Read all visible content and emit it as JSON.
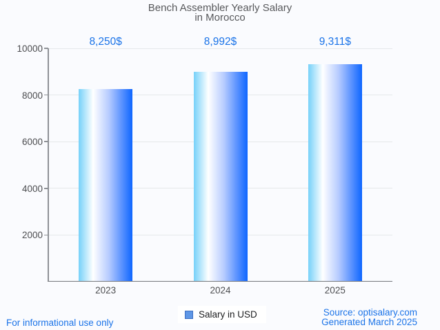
{
  "chart_data": {
    "type": "bar",
    "title_line1": "Bench Assembler Yearly Salary",
    "title_line2": "in Morocco",
    "categories": [
      "2023",
      "2024",
      "2025"
    ],
    "values": [
      8250,
      8992,
      9311
    ],
    "value_labels": [
      "8,250$",
      "8,992$",
      "9,311$"
    ],
    "series": [
      {
        "name": "Salary in USD",
        "values": [
          8250,
          8992,
          9311
        ]
      }
    ],
    "xlabel": "",
    "ylabel": "",
    "ylim": [
      0,
      10000
    ],
    "yticks": [
      2000,
      4000,
      6000,
      8000,
      10000
    ],
    "ytick_labels": [
      "2000",
      "4000",
      "6000",
      "8000",
      "10000"
    ],
    "grid": true,
    "legend_position": "bottom",
    "legend_label": "Salary in USD"
  },
  "footer": {
    "disclaimer": "For informational use only",
    "source_line1": "Source: optisalary.com",
    "source_line2": "Generated March 2025"
  },
  "colors": {
    "accent_blue": "#1a73e8",
    "title_gray": "#57585b",
    "axis_label_gray": "#4c4d50",
    "gridline_gray": "#e5e8ea",
    "legend_swatch": "#5f97e6",
    "bar_gradient": [
      "#76d1f9",
      "#ffffff",
      "#b7ccff",
      "#5f95ff",
      "#0e66ff"
    ],
    "bar_gradient_stops": [
      0,
      27,
      56,
      79,
      100
    ]
  }
}
